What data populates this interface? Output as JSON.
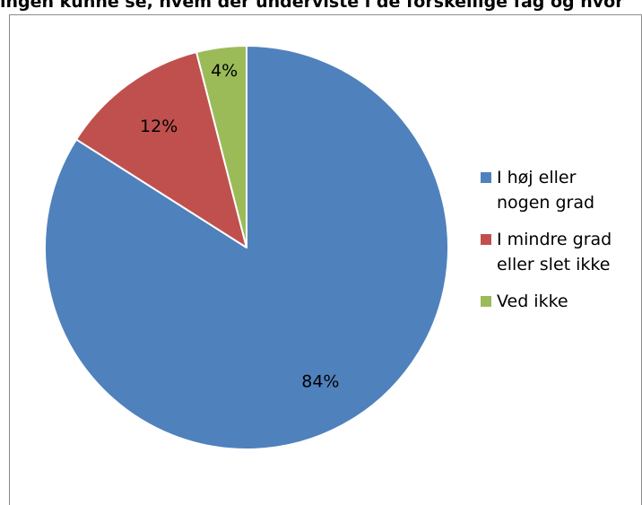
{
  "header": {
    "title": "ingen kunne se, hvem der underviste i de forskellige fag og hvor"
  },
  "chart_data": {
    "type": "pie",
    "title": "ingen kunne se, hvem der underviste i de forskellige fag og hvor",
    "categories": [
      "I høj eller nogen grad",
      "I mindre grad eller slet ikke",
      "Ved ikke"
    ],
    "values": [
      84,
      12,
      4
    ],
    "labels": [
      "84%",
      "12%",
      "4%"
    ],
    "colors": [
      "#4f81bd",
      "#c0504d",
      "#9bbb59"
    ],
    "start": "12 o'clock, clockwise",
    "legend_position": "right"
  },
  "legend": {
    "items": [
      {
        "label": "I høj eller nogen grad",
        "color": "#4f81bd"
      },
      {
        "label": "I mindre grad eller slet ikke",
        "color": "#c0504d"
      },
      {
        "label": "Ved ikke",
        "color": "#9bbb59"
      }
    ]
  }
}
